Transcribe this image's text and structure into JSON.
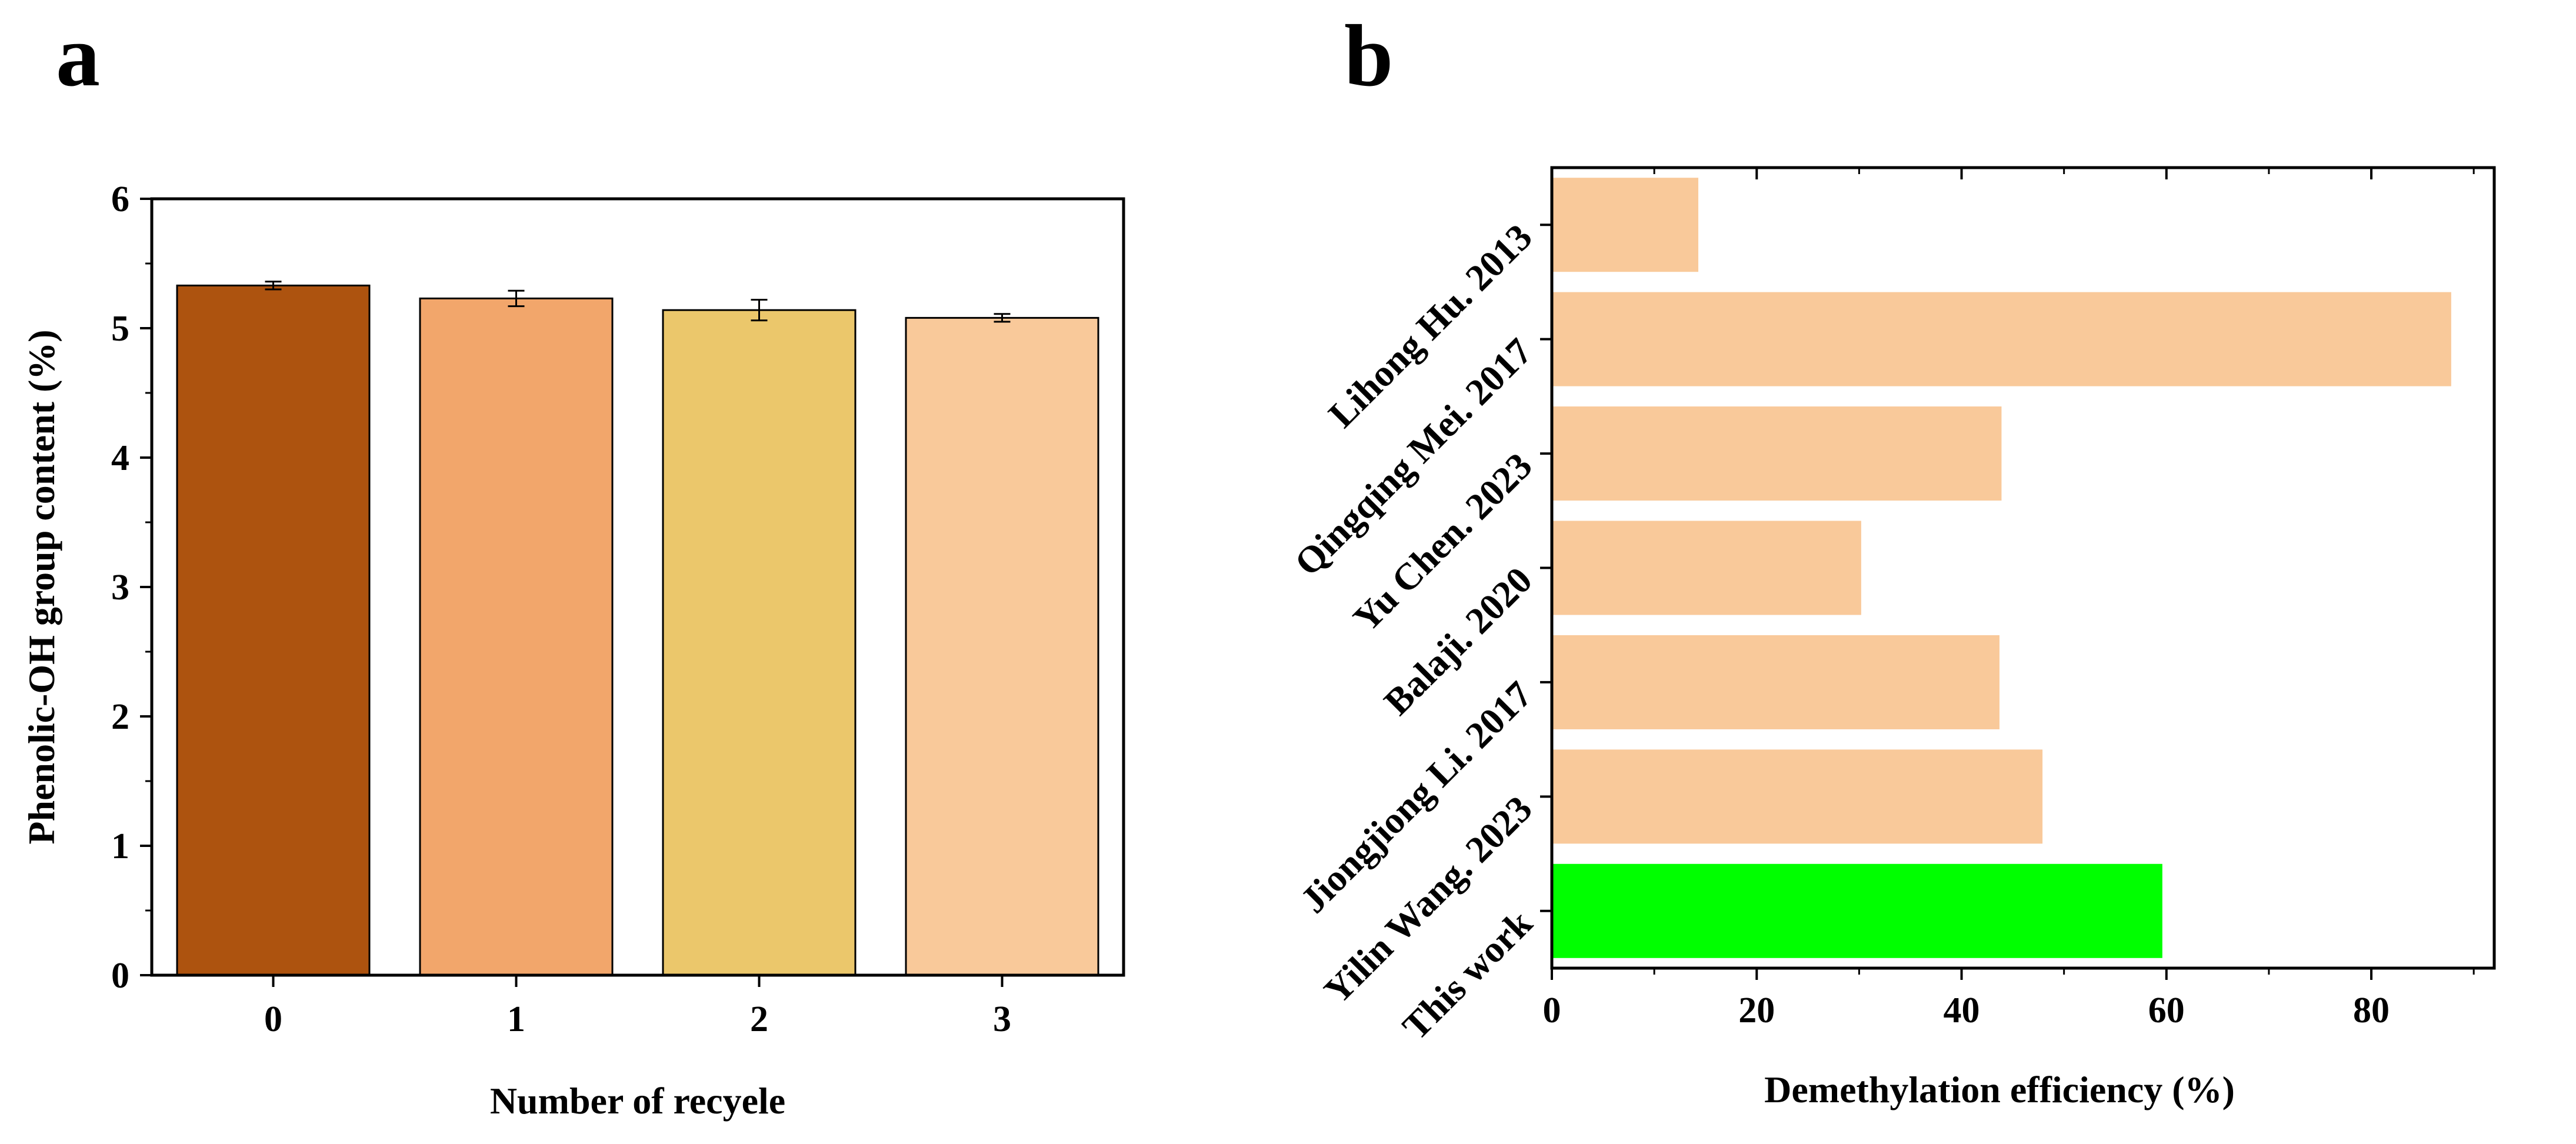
{
  "chart_data": [
    {
      "panel": "a",
      "type": "bar",
      "title": "",
      "xlabel": "Number of recyele",
      "ylabel": "Phenolic-OH group content (%)",
      "categories": [
        "0",
        "1",
        "2",
        "3"
      ],
      "values": [
        5.33,
        5.23,
        5.14,
        5.08
      ],
      "errors": [
        0.03,
        0.06,
        0.08,
        0.03
      ],
      "colors": [
        "#ad530f",
        "#f2a66b",
        "#ebc76b",
        "#f9c99a"
      ],
      "ylim": [
        0,
        6
      ],
      "yticks": [
        "0",
        "1",
        "2",
        "3",
        "4",
        "5",
        "6"
      ],
      "grid": false
    },
    {
      "panel": "b",
      "type": "bar",
      "orientation": "horizontal",
      "title": "",
      "xlabel": "Demethylation efficiency (%)",
      "ylabel": "",
      "categories": [
        "Lihong Hu. 2013",
        "Qingqing Mei. 2017",
        "Yu Chen. 2023",
        "Balaji. 2020",
        "Jiongjiong Li. 2017",
        "Yilin Wang. 2023",
        "This work"
      ],
      "values": [
        14.3,
        87.8,
        43.9,
        30.2,
        43.7,
        47.9,
        59.6
      ],
      "colors": [
        "#f9c99a",
        "#f9c99a",
        "#f9c99a",
        "#f9c99a",
        "#f9c99a",
        "#f9c99a",
        "#00ff00"
      ],
      "xlim": [
        0,
        92
      ],
      "xticks": [
        "0",
        "20",
        "40",
        "60",
        "80"
      ],
      "grid": false
    }
  ],
  "panels": {
    "a": "a",
    "b": "b"
  }
}
